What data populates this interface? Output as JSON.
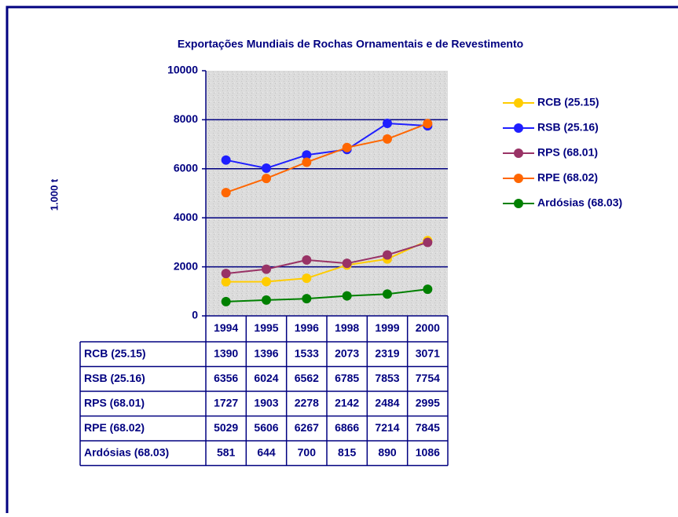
{
  "chart_data": {
    "type": "line",
    "title": "Exportações Mundiais de Rochas Ornamentais e de Revestimento",
    "y_label": "1.000 t",
    "categories": [
      "1994",
      "1995",
      "1996",
      "1998",
      "1999",
      "2000"
    ],
    "series": [
      {
        "name": "RCB (25.15)",
        "color": "#ffcc00",
        "values": [
          1390,
          1396,
          1533,
          2073,
          2319,
          3071
        ]
      },
      {
        "name": "RSB (25.16)",
        "color": "#1f1fff",
        "values": [
          6356,
          6024,
          6562,
          6785,
          7853,
          7754
        ]
      },
      {
        "name": "RPS (68.01)",
        "color": "#993366",
        "values": [
          1727,
          1903,
          2278,
          2142,
          2484,
          2995
        ]
      },
      {
        "name": "RPE (68.02)",
        "color": "#ff6600",
        "values": [
          5029,
          5606,
          6267,
          6866,
          7214,
          7845
        ]
      },
      {
        "name": "Ardósias (68.03)",
        "color": "#008000",
        "values": [
          581,
          644,
          700,
          815,
          890,
          1086
        ]
      }
    ],
    "ylim": [
      0,
      10000
    ],
    "yticks": [
      0,
      2000,
      4000,
      6000,
      8000,
      10000
    ],
    "grid": true,
    "legend": "right"
  }
}
